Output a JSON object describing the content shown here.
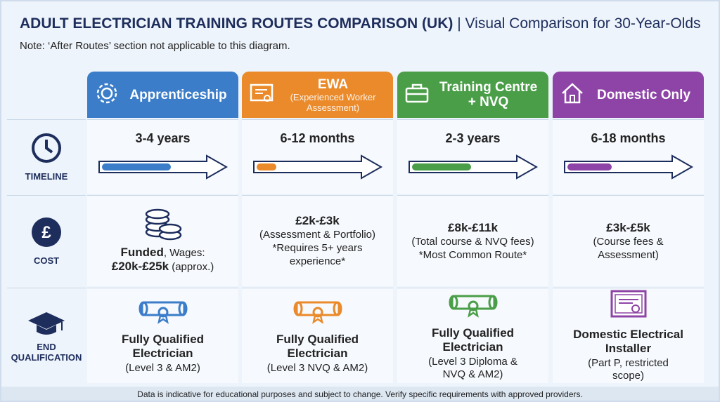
{
  "header": {
    "title": "ADULT ELECTRICIAN TRAINING ROUTES COMPARISON (UK)",
    "separator": "|",
    "subtitle": "Visual Comparison for 30-Year-Olds",
    "note": "Note: ‘After Routes’ section not applicable to this diagram."
  },
  "row_labels": {
    "timeline": "TIMELINE",
    "cost": "COST",
    "qualification": [
      "END",
      "QUALIFICATION"
    ]
  },
  "routes": [
    {
      "name": "Apprenticeship",
      "color": "#3b7dc9",
      "timeline": "3-4 years",
      "cost": [
        [
          {
            "text": "Funded",
            "bold": true
          },
          {
            "text": ", Wages:",
            "bold": false
          }
        ],
        [
          {
            "text": "£20k-£25k",
            "bold": true
          },
          {
            "text": " (approx.)",
            "bold": false
          }
        ]
      ],
      "qualification": {
        "title": "Fully Qualified Electrician",
        "detail": "(Level 3 & AM2)"
      }
    },
    {
      "name": "EWA",
      "subname": "(Experienced Worker Assessment)",
      "color": "#ea8a2a",
      "timeline": "6-12 months",
      "cost": [
        [
          {
            "text": "£2k-£3k",
            "bold": true
          }
        ],
        [
          {
            "text": "(Assessment & Portfolio)",
            "bold": false
          }
        ],
        [
          {
            "text": "*Requires 5+ years",
            "bold": false
          }
        ],
        [
          {
            "text": "experience*",
            "bold": false
          }
        ]
      ],
      "qualification": {
        "title": "Fully Qualified Electrician",
        "detail": "(Level 3 NVQ & AM2)"
      }
    },
    {
      "name": "Training Centre + NVQ",
      "color": "#4a9e48",
      "timeline": "2-3 years",
      "cost": [
        [
          {
            "text": "£8k-£11k",
            "bold": true
          }
        ],
        [
          {
            "text": "(Total course & NVQ fees)",
            "bold": false
          }
        ],
        [
          {
            "text": "*Most Common Route*",
            "bold": false
          }
        ]
      ],
      "qualification": {
        "title": "Fully Qualified Electrician",
        "detail": "(Level 3 Diploma & NVQ & AM2)"
      }
    },
    {
      "name": "Domestic Only",
      "color": "#8e44a6",
      "timeline": "6-18 months",
      "cost": [
        [
          {
            "text": "£3k-£5k",
            "bold": true
          }
        ],
        [
          {
            "text": "(Course fees &",
            "bold": false
          }
        ],
        [
          {
            "text": "Assessment)",
            "bold": false
          }
        ]
      ],
      "qualification": {
        "title": "Domestic Electrical Installer",
        "detail": "(Part P, restricted scope)"
      }
    }
  ],
  "footer": "Data is indicative for educational purposes and subject to change. Verify specific requirements with approved providers."
}
